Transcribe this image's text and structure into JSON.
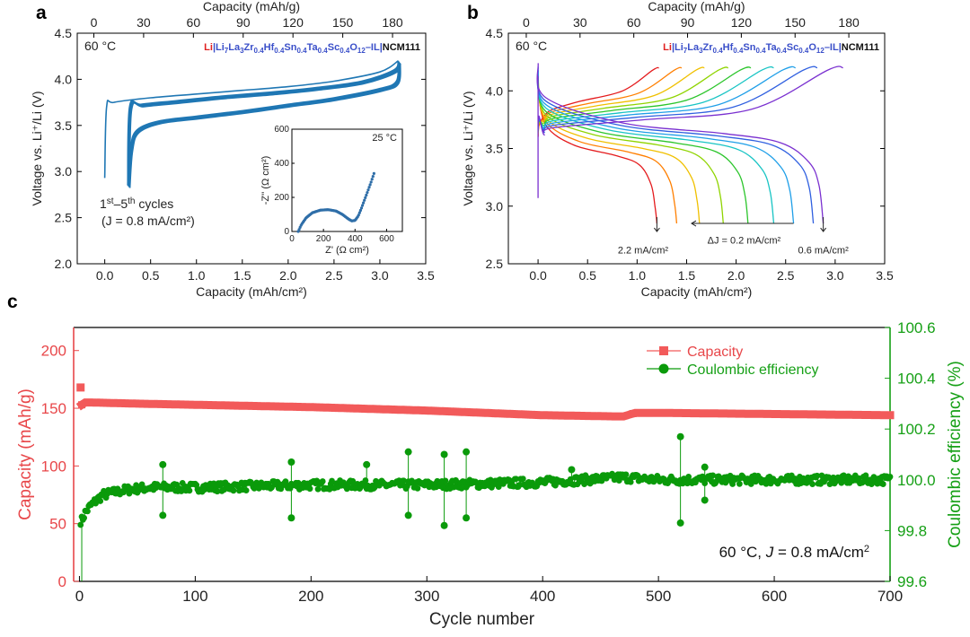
{
  "panels": [
    {
      "letter": "a",
      "bottom_xlabel": "Capacity (mAh/cm²)",
      "top_xlabel": "Capacity (mAh/g)",
      "ylabel": "Voltage vs. Li⁺/Li (V)",
      "temperature": "60 °C",
      "cell_label": {
        "li": "Li",
        "electrolyte": "|Li7La3Zr0.4Hf0.4Sn0.4Ta0.4Sc0.4O12–IL|",
        "cathode": "NCM111"
      },
      "annotation_cycles": "1st–5th cycles",
      "annotation_current": "(J = 0.8 mA/cm²)",
      "inset": {
        "temperature": "25 °C",
        "xlabel": "Z' (Ω cm²)",
        "ylabel": "-Z'' (Ω cm²)"
      }
    },
    {
      "letter": "b",
      "bottom_xlabel": "Capacity (mAh/cm²)",
      "top_xlabel": "Capacity (mAh/g)",
      "ylabel": "Voltage vs. Li⁺/Li (V)",
      "temperature": "60 °C",
      "cell_label": {
        "li": "Li",
        "electrolyte": "|Li7La3Zr0.4Hf0.4Sn0.4Ta0.4Sc0.4O12–IL|",
        "cathode": "NCM111"
      },
      "label_high_current": "2.2 mA/cm²",
      "label_step": "ΔJ = 0.2 mA/cm²",
      "label_low_current": "0.6 mA/cm²"
    },
    {
      "letter": "c",
      "xlabel": "Cycle number",
      "ylabel_left": "Capacity (mAh/g)",
      "ylabel_right": "Coulombic efficiency (%)",
      "legend_capacity": "Capacity",
      "legend_ce": "Coulombic efficiency",
      "condition": "60 °C, J = 0.8 mA/cm²"
    }
  ],
  "chart_data": [
    {
      "type": "line",
      "id": "a",
      "x_bottom_range": [
        -0.3,
        3.5
      ],
      "x_top_range": [
        -10,
        200
      ],
      "y_range": [
        2.0,
        4.5
      ],
      "x_bottom_ticks": [
        0.0,
        0.5,
        1.0,
        1.5,
        2.0,
        2.5,
        3.0,
        3.5
      ],
      "x_top_ticks": [
        0,
        30,
        60,
        90,
        120,
        150,
        180
      ],
      "y_ticks": [
        2.0,
        2.5,
        3.0,
        3.5,
        4.0,
        4.5
      ],
      "series": [
        {
          "role": "first-charge",
          "x": [
            0.0,
            0.02,
            0.1,
            0.5,
            1.0,
            1.5,
            2.0,
            2.5,
            3.0,
            3.2
          ],
          "y": [
            2.93,
            3.7,
            3.75,
            3.8,
            3.84,
            3.88,
            3.92,
            3.98,
            4.08,
            4.2
          ]
        },
        {
          "role": "charge",
          "x": [
            0.25,
            0.27,
            0.4,
            0.8,
            1.3,
            1.8,
            2.3,
            2.8,
            3.15,
            3.2
          ],
          "y": [
            2.85,
            3.7,
            3.73,
            3.77,
            3.82,
            3.86,
            3.91,
            3.98,
            4.1,
            4.2
          ]
        },
        {
          "role": "discharge",
          "x": [
            3.2,
            3.18,
            3.0,
            2.5,
            2.0,
            1.5,
            1.0,
            0.6,
            0.35,
            0.28,
            0.25
          ],
          "y": [
            4.2,
            3.98,
            3.9,
            3.8,
            3.73,
            3.66,
            3.6,
            3.55,
            3.45,
            3.25,
            2.85
          ]
        }
      ],
      "inset_impedance": {
        "x_range": [
          0,
          700
        ],
        "y_range": [
          0,
          600
        ],
        "x_ticks": [
          0,
          200,
          400,
          600
        ],
        "y_ticks": [
          0,
          200,
          400,
          600
        ],
        "x": [
          40,
          60,
          90,
          130,
          180,
          230,
          280,
          320,
          360,
          380,
          400,
          420,
          440,
          460,
          480,
          500,
          520
        ],
        "y": [
          0,
          40,
          80,
          110,
          125,
          128,
          120,
          100,
          72,
          62,
          65,
          90,
          135,
          185,
          235,
          285,
          340
        ]
      }
    },
    {
      "type": "line",
      "id": "b",
      "x_bottom_range": [
        -0.3,
        3.5
      ],
      "x_top_range": [
        -10,
        200
      ],
      "y_range": [
        2.5,
        4.5
      ],
      "x_bottom_ticks": [
        0.0,
        0.5,
        1.0,
        1.5,
        2.0,
        2.5,
        3.0,
        3.5
      ],
      "x_top_ticks": [
        0,
        30,
        60,
        90,
        120,
        150,
        180
      ],
      "y_ticks": [
        2.5,
        3.0,
        3.5,
        4.0,
        4.5
      ],
      "current_densities": [
        2.2,
        2.0,
        1.8,
        1.6,
        1.4,
        1.2,
        1.0,
        0.8,
        0.6
      ],
      "charge_capacity": [
        1.22,
        1.45,
        1.68,
        1.92,
        2.15,
        2.38,
        2.6,
        2.82,
        3.08
      ],
      "charge_end_voltage": [
        4.2,
        4.2,
        4.2,
        4.2,
        4.2,
        4.2,
        4.2,
        4.2,
        4.2
      ],
      "charge_plateau_voltage": [
        3.88,
        3.86,
        3.84,
        3.82,
        3.8,
        3.78,
        3.76,
        3.74,
        3.72
      ],
      "discharge_capacity": [
        1.2,
        1.4,
        1.63,
        1.87,
        2.12,
        2.38,
        2.58,
        2.78,
        2.88
      ],
      "discharge_start_voltage": [
        3.7,
        3.73,
        3.76,
        3.79,
        3.82,
        3.85,
        3.88,
        3.91,
        3.94
      ],
      "discharge_plateau_voltage": [
        3.44,
        3.47,
        3.5,
        3.53,
        3.55,
        3.57,
        3.59,
        3.61,
        3.63
      ],
      "cutoff_voltage": 2.85
    },
    {
      "type": "scatter",
      "id": "c",
      "x_range": [
        -5,
        700
      ],
      "y_left_range": [
        0,
        220
      ],
      "y_right_range": [
        99.6,
        100.6
      ],
      "x_ticks": [
        0,
        100,
        200,
        300,
        400,
        500,
        600,
        700
      ],
      "y_left_ticks": [
        0,
        50,
        100,
        150,
        200
      ],
      "y_right_ticks": [
        99.6,
        99.8,
        100.0,
        100.2,
        100.4,
        100.6
      ],
      "capacity": {
        "x": [
          1,
          2,
          5,
          10,
          50,
          100,
          200,
          300,
          400,
          460,
          470,
          480,
          500,
          600,
          700
        ],
        "y": [
          168,
          153,
          155,
          155,
          154,
          153,
          151,
          148,
          144,
          143,
          143,
          146,
          146,
          145,
          144
        ]
      },
      "coulombic_efficiency": {
        "x": [
          2,
          5,
          10,
          20,
          40,
          60,
          100,
          200,
          300,
          400,
          470,
          500,
          600,
          700
        ],
        "y": [
          99.84,
          99.87,
          99.9,
          99.94,
          99.96,
          99.97,
          99.97,
          99.98,
          99.98,
          99.99,
          100.01,
          100.0,
          100.0,
          100.0
        ],
        "outliers": [
          {
            "x": 72,
            "y": 100.06
          },
          {
            "x": 72,
            "y": 99.86
          },
          {
            "x": 183,
            "y": 100.07
          },
          {
            "x": 183,
            "y": 99.85
          },
          {
            "x": 284,
            "y": 100.11
          },
          {
            "x": 284,
            "y": 99.86
          },
          {
            "x": 315,
            "y": 100.1
          },
          {
            "x": 315,
            "y": 99.82
          },
          {
            "x": 334,
            "y": 100.11
          },
          {
            "x": 334,
            "y": 99.85
          },
          {
            "x": 519,
            "y": 100.17
          },
          {
            "x": 519,
            "y": 99.83
          },
          {
            "x": 540,
            "y": 100.05
          },
          {
            "x": 540,
            "y": 99.92
          },
          {
            "x": 248,
            "y": 100.06
          },
          {
            "x": 425,
            "y": 100.04
          }
        ]
      }
    }
  ],
  "colors": {
    "panel_a_curve": "#1f77b4",
    "impedance": "#2f6ea8",
    "capacity": "#f25a5a",
    "capacity_axis": "#e8474a",
    "coulombic_efficiency": "#0a9a0a",
    "ce_axis": "#16a016",
    "li_text": "#e02020",
    "electrolyte_text": "#3a4fc9",
    "rainbow": [
      "#e41a1c",
      "#ff7f00",
      "#f0c000",
      "#8fd400",
      "#2bc52b",
      "#18c4c4",
      "#1f9fe8",
      "#3060e0",
      "#7a30d0"
    ]
  }
}
